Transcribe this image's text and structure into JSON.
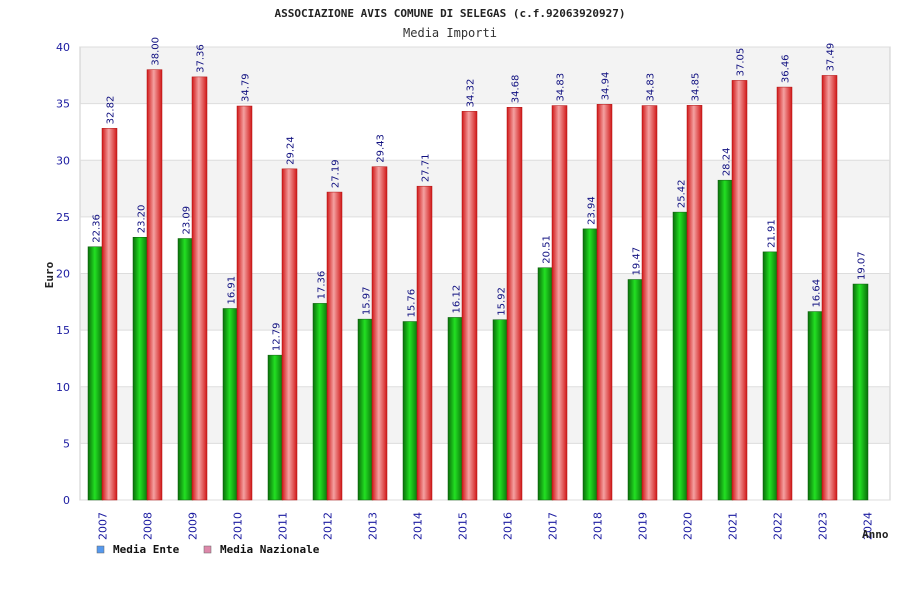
{
  "chart_data": {
    "type": "bar",
    "title": "ASSOCIAZIONE AVIS COMUNE DI SELEGAS (c.f.92063920927)",
    "subtitle": "Media Importi",
    "xlabel": "Anno",
    "ylabel": "Euro",
    "ylim": [
      0,
      40
    ],
    "yticks": [
      0,
      5,
      10,
      15,
      20,
      25,
      30,
      35,
      40
    ],
    "grid": true,
    "legend_position": "bottom-left",
    "categories": [
      "2007",
      "2008",
      "2009",
      "2010",
      "2011",
      "2012",
      "2013",
      "2014",
      "2015",
      "2016",
      "2017",
      "2018",
      "2019",
      "2020",
      "2021",
      "2022",
      "2023",
      "2024"
    ],
    "series": [
      {
        "name": "Media Ente",
        "color": "#11aa11",
        "legend_color": "#5599ee",
        "values": [
          22.36,
          23.2,
          23.09,
          16.91,
          12.79,
          17.36,
          15.97,
          15.76,
          16.12,
          15.92,
          20.51,
          23.94,
          19.47,
          25.42,
          28.24,
          21.91,
          16.64,
          19.07
        ],
        "labels": [
          "22.36",
          "23.20",
          "23.09",
          "16.91",
          "12.79",
          "17.36",
          "15.97",
          "15.76",
          "16.12",
          "15.92",
          "20.51",
          "23.94",
          "19.47",
          "25.42",
          "28.24",
          "21.91",
          "16.64",
          "19.07"
        ]
      },
      {
        "name": "Media Nazionale",
        "color": "#ee2222",
        "legend_color": "#dd88aa",
        "values": [
          32.82,
          38.0,
          37.36,
          34.79,
          29.24,
          27.19,
          29.43,
          27.71,
          34.32,
          34.68,
          34.83,
          34.94,
          34.83,
          34.85,
          37.05,
          36.46,
          37.49,
          null
        ],
        "labels": [
          "32.82",
          "38.00",
          "37.36",
          "34.79",
          "29.24",
          "27.19",
          "29.43",
          "27.71",
          "34.32",
          "34.68",
          "34.83",
          "34.94",
          "34.83",
          "34.85",
          "37.05",
          "36.46",
          "37.49",
          null
        ]
      }
    ]
  }
}
